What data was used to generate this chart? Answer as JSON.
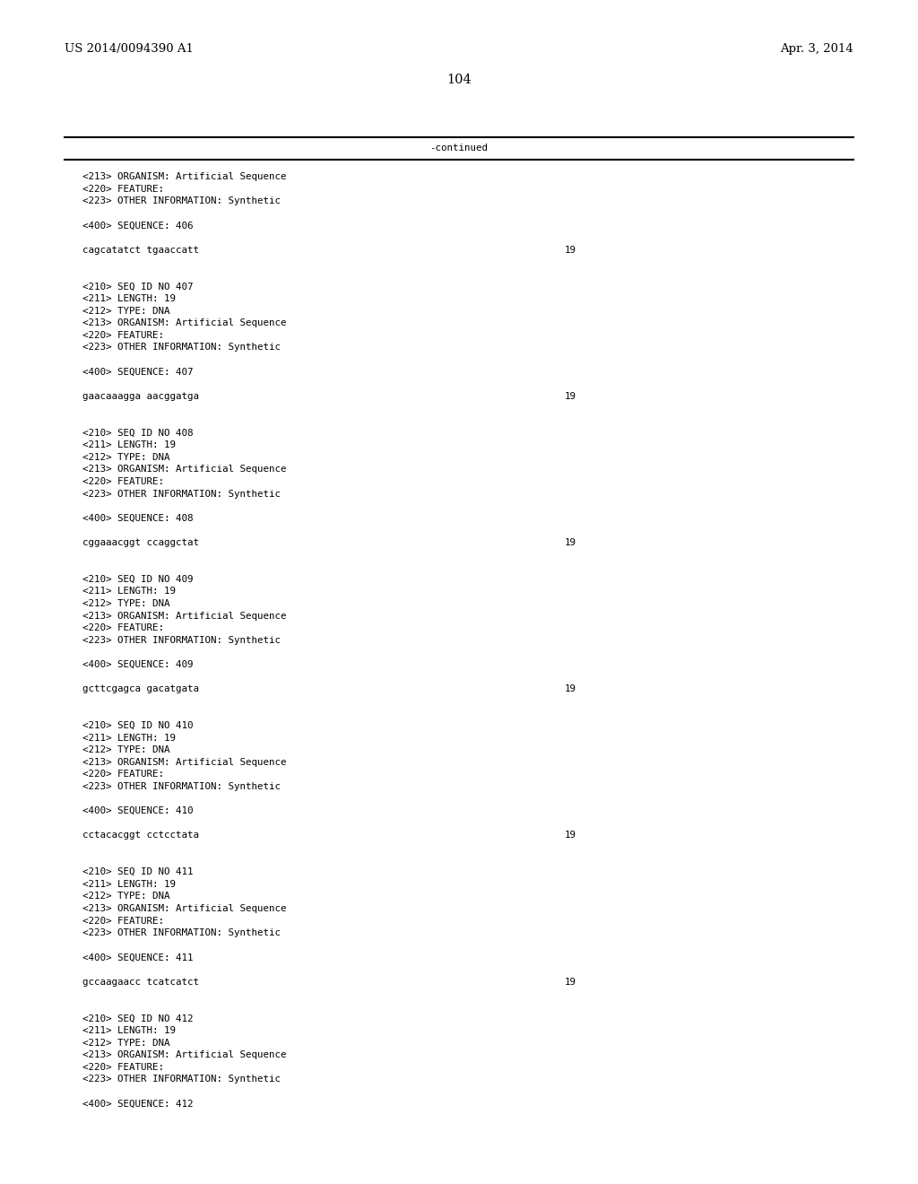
{
  "bg_color": "#ffffff",
  "top_left_text": "US 2014/0094390 A1",
  "top_right_text": "Apr. 3, 2014",
  "page_number": "104",
  "continued_label": "-continued",
  "monospace_font_size": 7.8,
  "header_font_size": 9.5,
  "page_num_font_size": 10.5,
  "content_lines": [
    [
      "<213> ORGANISM: Artificial Sequence",
      null
    ],
    [
      "<220> FEATURE:",
      null
    ],
    [
      "<223> OTHER INFORMATION: Synthetic",
      null
    ],
    [
      "",
      null
    ],
    [
      "<400> SEQUENCE: 406",
      null
    ],
    [
      "",
      null
    ],
    [
      "cagcatatct tgaaccatt",
      "19"
    ],
    [
      "",
      null
    ],
    [
      "",
      null
    ],
    [
      "<210> SEQ ID NO 407",
      null
    ],
    [
      "<211> LENGTH: 19",
      null
    ],
    [
      "<212> TYPE: DNA",
      null
    ],
    [
      "<213> ORGANISM: Artificial Sequence",
      null
    ],
    [
      "<220> FEATURE:",
      null
    ],
    [
      "<223> OTHER INFORMATION: Synthetic",
      null
    ],
    [
      "",
      null
    ],
    [
      "<400> SEQUENCE: 407",
      null
    ],
    [
      "",
      null
    ],
    [
      "gaacaaagga aacggatga",
      "19"
    ],
    [
      "",
      null
    ],
    [
      "",
      null
    ],
    [
      "<210> SEQ ID NO 408",
      null
    ],
    [
      "<211> LENGTH: 19",
      null
    ],
    [
      "<212> TYPE: DNA",
      null
    ],
    [
      "<213> ORGANISM: Artificial Sequence",
      null
    ],
    [
      "<220> FEATURE:",
      null
    ],
    [
      "<223> OTHER INFORMATION: Synthetic",
      null
    ],
    [
      "",
      null
    ],
    [
      "<400> SEQUENCE: 408",
      null
    ],
    [
      "",
      null
    ],
    [
      "cggaaacggt ccaggctat",
      "19"
    ],
    [
      "",
      null
    ],
    [
      "",
      null
    ],
    [
      "<210> SEQ ID NO 409",
      null
    ],
    [
      "<211> LENGTH: 19",
      null
    ],
    [
      "<212> TYPE: DNA",
      null
    ],
    [
      "<213> ORGANISM: Artificial Sequence",
      null
    ],
    [
      "<220> FEATURE:",
      null
    ],
    [
      "<223> OTHER INFORMATION: Synthetic",
      null
    ],
    [
      "",
      null
    ],
    [
      "<400> SEQUENCE: 409",
      null
    ],
    [
      "",
      null
    ],
    [
      "gcttcgagca gacatgata",
      "19"
    ],
    [
      "",
      null
    ],
    [
      "",
      null
    ],
    [
      "<210> SEQ ID NO 410",
      null
    ],
    [
      "<211> LENGTH: 19",
      null
    ],
    [
      "<212> TYPE: DNA",
      null
    ],
    [
      "<213> ORGANISM: Artificial Sequence",
      null
    ],
    [
      "<220> FEATURE:",
      null
    ],
    [
      "<223> OTHER INFORMATION: Synthetic",
      null
    ],
    [
      "",
      null
    ],
    [
      "<400> SEQUENCE: 410",
      null
    ],
    [
      "",
      null
    ],
    [
      "cctacacggt cctcctata",
      "19"
    ],
    [
      "",
      null
    ],
    [
      "",
      null
    ],
    [
      "<210> SEQ ID NO 411",
      null
    ],
    [
      "<211> LENGTH: 19",
      null
    ],
    [
      "<212> TYPE: DNA",
      null
    ],
    [
      "<213> ORGANISM: Artificial Sequence",
      null
    ],
    [
      "<220> FEATURE:",
      null
    ],
    [
      "<223> OTHER INFORMATION: Synthetic",
      null
    ],
    [
      "",
      null
    ],
    [
      "<400> SEQUENCE: 411",
      null
    ],
    [
      "",
      null
    ],
    [
      "gccaagaacc tcatcatct",
      "19"
    ],
    [
      "",
      null
    ],
    [
      "",
      null
    ],
    [
      "<210> SEQ ID NO 412",
      null
    ],
    [
      "<211> LENGTH: 19",
      null
    ],
    [
      "<212> TYPE: DNA",
      null
    ],
    [
      "<213> ORGANISM: Artificial Sequence",
      null
    ],
    [
      "<220> FEATURE:",
      null
    ],
    [
      "<223> OTHER INFORMATION: Synthetic",
      null
    ],
    [
      "",
      null
    ],
    [
      "<400> SEQUENCE: 412",
      null
    ]
  ]
}
